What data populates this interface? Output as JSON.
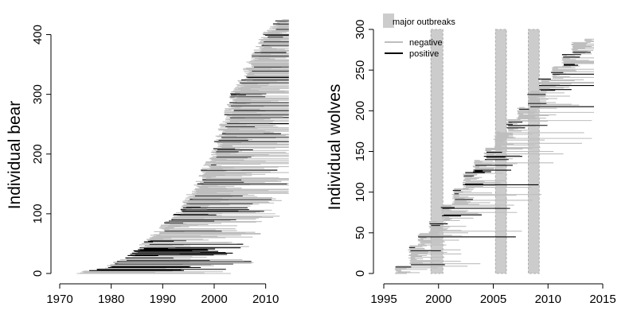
{
  "colors": {
    "negative": "#bebebe",
    "positive": "#000000",
    "outbreak": "#cccccc",
    "outbreak_edge": "#a0a0a0"
  },
  "chart_data": [
    {
      "type": "bar",
      "orientation": "horizontal",
      "ylabel": "Individual bear",
      "xlabel": "",
      "xlim": [
        1970,
        2015
      ],
      "ylim": [
        0,
        430
      ],
      "xticks": [
        1970,
        1980,
        1990,
        2000,
        2010
      ],
      "yticks": [
        0,
        100,
        200,
        300,
        400
      ],
      "series": [
        {
          "key": "negative",
          "segments": "~340 grey horizontal lines (one per individual), entry year rising from ~1975 (bottom) to ~2013 (top), typically spanning to ~2005-2014"
        },
        {
          "key": "positive",
          "segments": "~70 black horizontal lines (one per seropositive individual) interleaved throughout, concentrated at ids 5-60 (entry 1975-1990)"
        }
      ],
      "approx_entry_profile": [
        [
          0,
          1973
        ],
        [
          10,
          1979
        ],
        [
          30,
          1984
        ],
        [
          60,
          1988
        ],
        [
          100,
          1993
        ],
        [
          150,
          1997
        ],
        [
          200,
          2000
        ],
        [
          250,
          2002
        ],
        [
          300,
          2004
        ],
        [
          350,
          2007
        ],
        [
          400,
          2010
        ],
        [
          425,
          2013
        ]
      ]
    },
    {
      "type": "bar",
      "orientation": "horizontal",
      "ylabel": "Individual wolves",
      "xlabel": "",
      "xlim": [
        1995,
        2015
      ],
      "ylim": [
        0,
        300
      ],
      "xticks": [
        1995,
        2000,
        2005,
        2010,
        2015
      ],
      "yticks": [
        0,
        50,
        100,
        150,
        200,
        250,
        300
      ],
      "legend": [
        {
          "label": "major outbreaks",
          "symbol": "box"
        },
        {
          "label": "negative",
          "symbol": "grey-line"
        },
        {
          "label": "positive",
          "symbol": "black-line"
        }
      ],
      "outbreaks": [
        [
          1999.3,
          2000.4
        ],
        [
          2005.2,
          2006.2
        ],
        [
          2008.2,
          2009.2
        ]
      ],
      "series": [
        {
          "key": "negative",
          "segments": "~230 grey horizontal lines, entry in cohorts each year, stair-step rising from 1996 (bottom) to 2013 (top)"
        },
        {
          "key": "positive",
          "segments": "~60 black horizontal lines, clustered in cohorts entering just after outbreaks"
        }
      ],
      "cohort_profile": [
        [
          0,
          1996
        ],
        [
          10,
          1997.2
        ],
        [
          35,
          1998.1
        ],
        [
          50,
          1999.1
        ],
        [
          65,
          2000.2
        ],
        [
          85,
          2001.2
        ],
        [
          105,
          2002.2
        ],
        [
          125,
          2003.1
        ],
        [
          140,
          2004.1
        ],
        [
          155,
          2005.0
        ],
        [
          175,
          2006.1
        ],
        [
          190,
          2007.1
        ],
        [
          205,
          2008.1
        ],
        [
          225,
          2009.1
        ],
        [
          240,
          2010.2
        ],
        [
          255,
          2011.2
        ],
        [
          270,
          2012.1
        ],
        [
          285,
          2013.2
        ]
      ]
    }
  ]
}
